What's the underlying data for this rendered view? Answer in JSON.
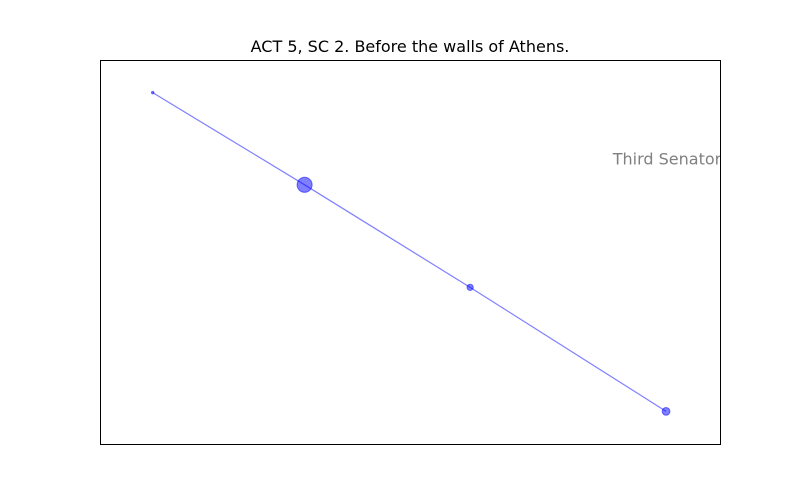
{
  "chart_data": {
    "type": "line",
    "title": "ACT 5, SC 2. Before the walls of Athens.",
    "xlabel": "",
    "ylabel": "",
    "grid": false,
    "axes_visible": false,
    "xlim": [
      0,
      1
    ],
    "ylim": [
      0,
      1
    ],
    "series": [
      {
        "color": "#0000ff",
        "alpha": 0.5,
        "points": [
          {
            "x": 0.085,
            "y": 0.915,
            "weight": 0.2
          },
          {
            "x": 0.33,
            "y": 0.675,
            "weight": 7.5
          },
          {
            "x": 0.597,
            "y": 0.408,
            "weight": 1.3
          },
          {
            "x": 0.913,
            "y": 0.085,
            "weight": 2.0
          }
        ]
      }
    ],
    "annotations": [
      {
        "text": "Third Senator",
        "x": 0.827,
        "y": 0.743,
        "color": "#808080"
      }
    ]
  }
}
